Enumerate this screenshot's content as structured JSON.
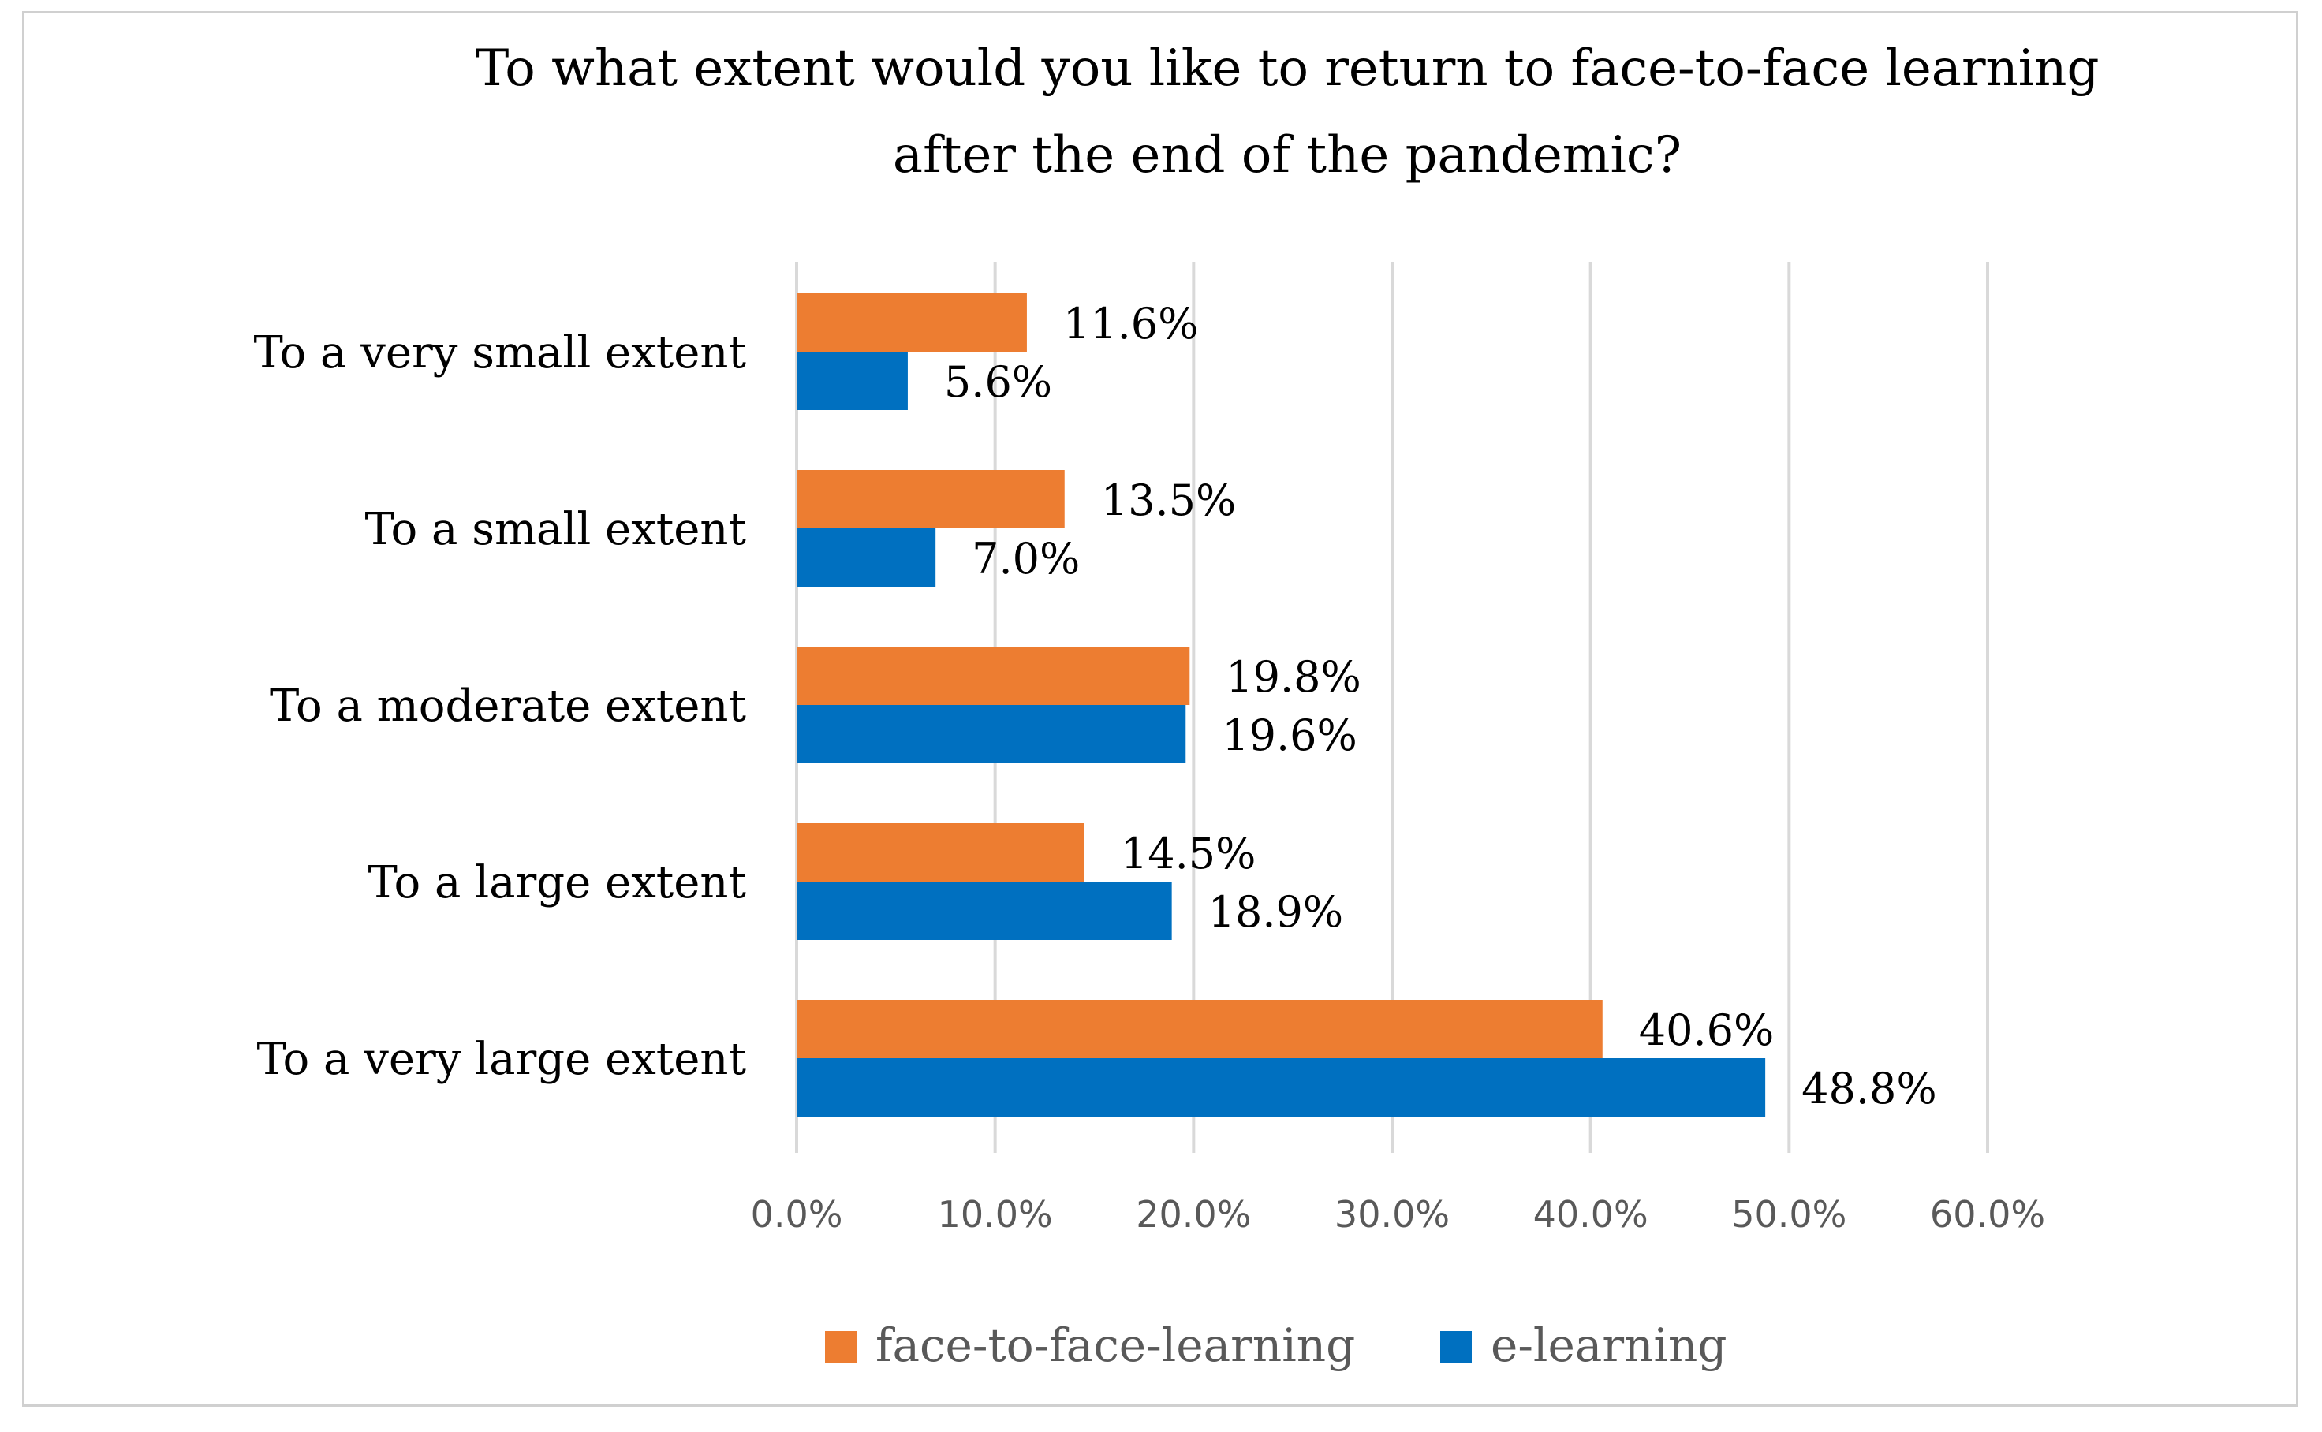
{
  "chart_data": {
    "type": "bar",
    "orientation": "horizontal",
    "title_lines": [
      "To what extent would you like to return to face-to-face learning",
      "after the end of the pandemic?"
    ],
    "categories": [
      "To a very small extent",
      "To a small extent",
      "To a moderate extent",
      "To a large extent",
      "To a very large extent"
    ],
    "series": [
      {
        "name": "face-to-face-learning",
        "color": "#ED7D31",
        "values": [
          11.6,
          13.5,
          19.8,
          14.5,
          40.6
        ],
        "labels": [
          "11.6%",
          "13.5%",
          "19.8%",
          "14.5%",
          "40.6%"
        ]
      },
      {
        "name": "e-learning",
        "color": "#0070C0",
        "values": [
          5.6,
          7.0,
          19.6,
          18.9,
          48.8
        ],
        "labels": [
          "5.6%",
          "7.0%",
          "19.6%",
          "18.9%",
          "48.8%"
        ]
      }
    ],
    "xlim": [
      0,
      60
    ],
    "xticks": [
      0,
      10,
      20,
      30,
      40,
      50,
      60
    ],
    "xtick_labels": [
      "0.0%",
      "10.0%",
      "20.0%",
      "30.0%",
      "40.0%",
      "50.0%",
      "60.0%"
    ],
    "grid": true,
    "legend_position": "bottom-center",
    "gridline_color": "#d9d9d9",
    "text_color": "#000000",
    "tick_color": "#595959"
  }
}
